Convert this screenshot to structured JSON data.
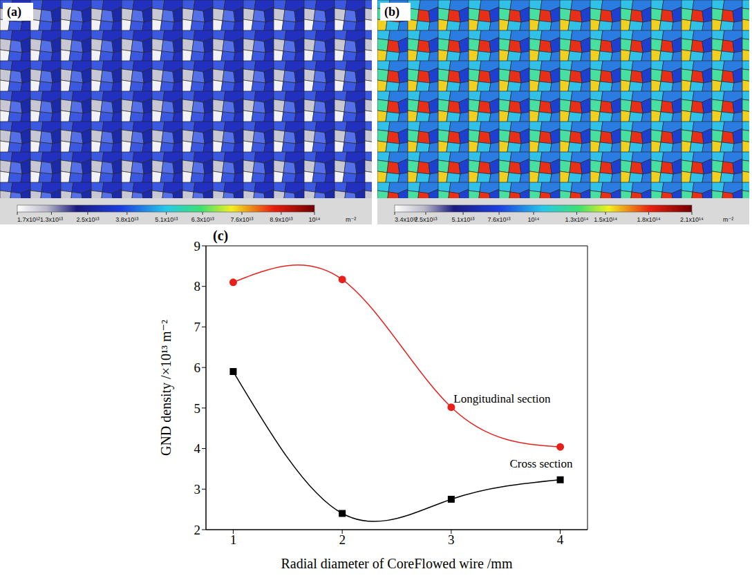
{
  "chart_data": [
    {
      "type": "map",
      "panel_label": "(a)",
      "colorbar": {
        "range": [
          1700000000000.0,
          100000000000000.0
        ],
        "ticks": [
          {
            "value": 1700000000000.0,
            "label": "1.7x10¹²"
          },
          {
            "value": 13000000000000.0,
            "label": "1.3x10¹³"
          },
          {
            "value": 25000000000000.0,
            "label": "2.5x10¹³"
          },
          {
            "value": 38000000000000.0,
            "label": "3.8x10¹³"
          },
          {
            "value": 51000000000000.0,
            "label": "5.1x10¹³"
          },
          {
            "value": 63000000000000.0,
            "label": "6.3x10¹³"
          },
          {
            "value": 76000000000000.0,
            "label": "7.6x10¹³"
          },
          {
            "value": 89000000000000.0,
            "label": "8.9x10¹³"
          },
          {
            "value": 100000000000000.0,
            "label": "10¹⁴"
          }
        ],
        "unit": "m⁻²"
      }
    },
    {
      "type": "map",
      "panel_label": "(b)",
      "colorbar": {
        "range": [
          3400000000000.0,
          210000000000000.0
        ],
        "ticks": [
          {
            "value": 3400000000000.0,
            "label": "3.4x10¹²"
          },
          {
            "value": 25000000000000.0,
            "label": "2.5x10¹³"
          },
          {
            "value": 51000000000000.0,
            "label": "5.1x10¹³"
          },
          {
            "value": 76000000000000.0,
            "label": "7.6x10¹³"
          },
          {
            "value": 100000000000000.0,
            "label": "10¹⁴"
          },
          {
            "value": 130000000000000.0,
            "label": "1.3x10¹⁴"
          },
          {
            "value": 150000000000000.0,
            "label": "1.5x10¹⁴"
          },
          {
            "value": 180000000000000.0,
            "label": "1.8x10¹⁴"
          },
          {
            "value": 210000000000000.0,
            "label": "2.1x10¹⁴"
          }
        ],
        "unit": "m⁻²"
      }
    },
    {
      "type": "line",
      "panel_label": "(c)",
      "x_label": "Radial diameter of CoreFlowed wire /mm",
      "y_label": "GND density /×10¹³ m⁻²",
      "x": [
        1,
        2,
        3,
        4
      ],
      "xlim": [
        0.75,
        4.25
      ],
      "xticks": [
        1,
        2,
        3,
        4
      ],
      "ylim": [
        2,
        9
      ],
      "yticks": [
        2,
        3,
        4,
        5,
        6,
        7,
        8,
        9
      ],
      "series": [
        {
          "name": "Longitudinal section",
          "color": "#e8201c",
          "marker": "circle",
          "values": [
            8.1,
            8.17,
            5.02,
            4.04
          ]
        },
        {
          "name": "Cross section",
          "color": "#000000",
          "marker": "square",
          "values": [
            5.9,
            2.4,
            2.75,
            3.23
          ]
        }
      ]
    }
  ]
}
